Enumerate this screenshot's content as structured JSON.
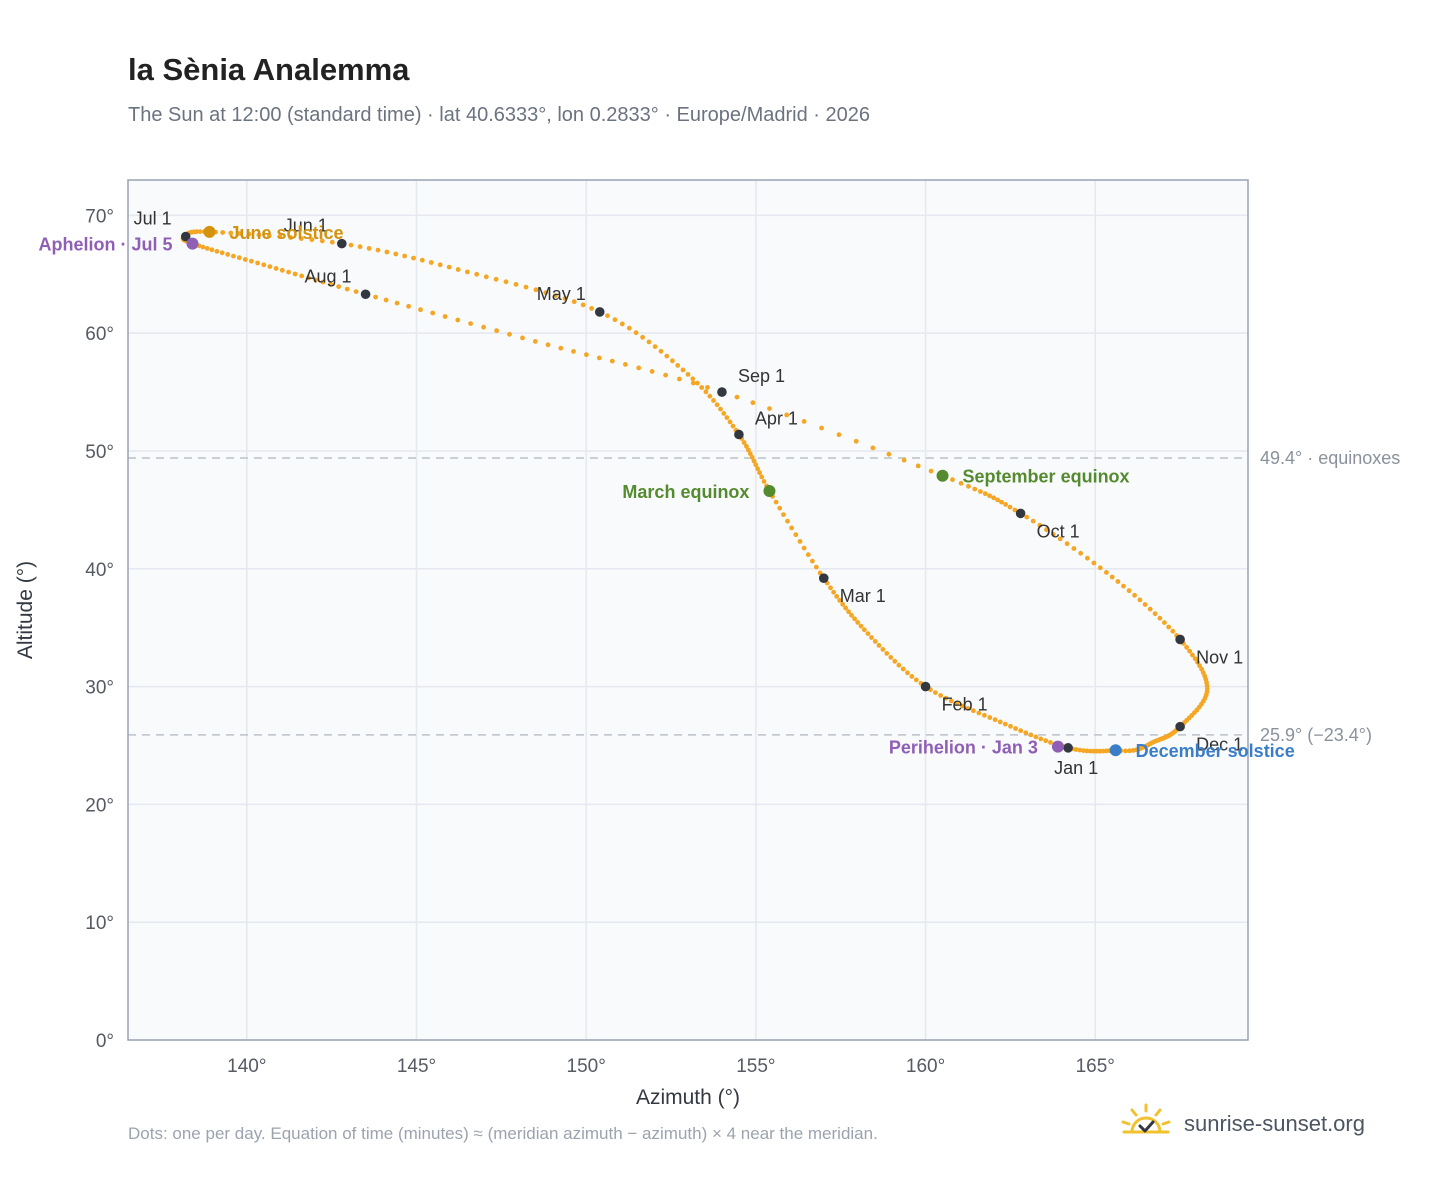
{
  "header": {
    "title": "la Sènia Analemma",
    "subtitle": "The Sun at 12:00 (standard time) · lat 40.6333°, lon 0.2833° · Europe/Madrid · 2026"
  },
  "footer": {
    "note": "Dots: one per day. Equation of time (minutes) ≈ (meridian azimuth − azimuth) × 4 near the meridian.",
    "brand": "sunrise-sunset.org",
    "brand_icon": "sun-check-icon"
  },
  "colors": {
    "curve": "#f5a623",
    "marker": "#333840",
    "equinox": "#558b2f",
    "june_solstice": "#d4930f",
    "december_solstice": "#3a7dc9",
    "apsis": "#8e5fb5",
    "grid": "#e5e8ee",
    "plot_bg": "#f8fafc",
    "frame": "#9aa3b2",
    "ref_line": "#c4c9d1"
  },
  "chart_data": {
    "type": "scatter",
    "title": "la Sènia Analemma",
    "xlabel": "Azimuth (°)",
    "ylabel": "Altitude (°)",
    "xlim": [
      136.5,
      169.5
    ],
    "ylim": [
      0,
      73
    ],
    "x_ticks": [
      140,
      145,
      150,
      155,
      160,
      165
    ],
    "x_tick_labels": [
      "140°",
      "145°",
      "150°",
      "155°",
      "160°",
      "165°"
    ],
    "y_ticks": [
      0,
      10,
      20,
      30,
      40,
      50,
      60,
      70
    ],
    "y_tick_labels": [
      "0°",
      "10°",
      "20°",
      "30°",
      "40°",
      "50°",
      "60°",
      "70°"
    ],
    "grid": true,
    "reference_lines": [
      {
        "y": 49.4,
        "label": "49.4° · equinoxes"
      },
      {
        "y": 25.9,
        "label": "25.9° (−23.4°)"
      }
    ],
    "analemma_path": [
      {
        "date": "Jan 1",
        "az": 164.2,
        "alt": 24.8
      },
      {
        "date": "Jan 16",
        "az": 162.2,
        "alt": 27.0
      },
      {
        "date": "Feb 1",
        "az": 160.0,
        "alt": 30.0
      },
      {
        "date": "Feb 15",
        "az": 158.3,
        "alt": 34.5
      },
      {
        "date": "Mar 1",
        "az": 157.0,
        "alt": 39.2
      },
      {
        "date": "Mar 20",
        "az": 155.4,
        "alt": 46.6
      },
      {
        "date": "Apr 1",
        "az": 154.5,
        "alt": 51.4
      },
      {
        "date": "Apr 15",
        "az": 153.0,
        "alt": 56.5
      },
      {
        "date": "May 1",
        "az": 150.4,
        "alt": 61.8
      },
      {
        "date": "May 16",
        "az": 146.5,
        "alt": 65.2
      },
      {
        "date": "Jun 1",
        "az": 142.8,
        "alt": 67.6
      },
      {
        "date": "Jun 21",
        "az": 138.9,
        "alt": 68.6
      },
      {
        "date": "Jul 1",
        "az": 138.2,
        "alt": 68.2
      },
      {
        "date": "Jul 5",
        "az": 138.4,
        "alt": 67.6
      },
      {
        "date": "Jul 16",
        "az": 140.5,
        "alt": 65.8
      },
      {
        "date": "Aug 1",
        "az": 143.5,
        "alt": 63.3
      },
      {
        "date": "Aug 16",
        "az": 148.5,
        "alt": 59.3
      },
      {
        "date": "Sep 1",
        "az": 154.0,
        "alt": 55.0
      },
      {
        "date": "Sep 23",
        "az": 160.5,
        "alt": 47.9
      },
      {
        "date": "Oct 1",
        "az": 162.8,
        "alt": 44.7
      },
      {
        "date": "Oct 16",
        "az": 165.5,
        "alt": 39.3
      },
      {
        "date": "Nov 1",
        "az": 167.5,
        "alt": 34.0
      },
      {
        "date": "Nov 16",
        "az": 168.3,
        "alt": 29.8
      },
      {
        "date": "Dec 1",
        "az": 167.5,
        "alt": 26.6
      },
      {
        "date": "Dec 11",
        "az": 166.8,
        "alt": 25.4
      },
      {
        "date": "Dec 21",
        "az": 165.6,
        "alt": 24.6
      },
      {
        "date": "Jan 1",
        "az": 164.2,
        "alt": 24.8
      }
    ],
    "month_markers": [
      {
        "label": "Jan 1",
        "az": 164.2,
        "alt": 24.8,
        "anchor": "below"
      },
      {
        "label": "Feb 1",
        "az": 160.0,
        "alt": 30.0,
        "anchor": "below-right"
      },
      {
        "label": "Mar 1",
        "az": 157.0,
        "alt": 39.2,
        "anchor": "below-right"
      },
      {
        "label": "Apr 1",
        "az": 154.5,
        "alt": 51.4,
        "anchor": "above-right"
      },
      {
        "label": "May 1",
        "az": 150.4,
        "alt": 61.8,
        "anchor": "above-left"
      },
      {
        "label": "Jun 1",
        "az": 142.8,
        "alt": 67.6,
        "anchor": "above-left"
      },
      {
        "label": "Jul 1",
        "az": 138.2,
        "alt": 68.2,
        "anchor": "above-left"
      },
      {
        "label": "Aug 1",
        "az": 143.5,
        "alt": 63.3,
        "anchor": "above-left"
      },
      {
        "label": "Sep 1",
        "az": 154.0,
        "alt": 55.0,
        "anchor": "above-right"
      },
      {
        "label": "Oct 1",
        "az": 162.8,
        "alt": 44.7,
        "anchor": "below-right"
      },
      {
        "label": "Nov 1",
        "az": 167.5,
        "alt": 34.0,
        "anchor": "below-right"
      },
      {
        "label": "Dec 1",
        "az": 167.5,
        "alt": 26.6,
        "anchor": "below-right"
      }
    ],
    "events": [
      {
        "label": "June solstice",
        "az": 138.9,
        "alt": 68.6,
        "color": "#d4930f",
        "side": "right"
      },
      {
        "label": "Aphelion · Jul 5",
        "az": 138.4,
        "alt": 67.6,
        "color": "#8e5fb5",
        "side": "left"
      },
      {
        "label": "March equinox",
        "az": 155.4,
        "alt": 46.6,
        "color": "#558b2f",
        "side": "left"
      },
      {
        "label": "September equinox",
        "az": 160.5,
        "alt": 47.9,
        "color": "#558b2f",
        "side": "right"
      },
      {
        "label": "Perihelion · Jan 3",
        "az": 163.9,
        "alt": 24.9,
        "color": "#8e5fb5",
        "side": "left"
      },
      {
        "label": "December solstice",
        "az": 165.6,
        "alt": 24.6,
        "color": "#3a7dc9",
        "side": "right"
      }
    ]
  }
}
